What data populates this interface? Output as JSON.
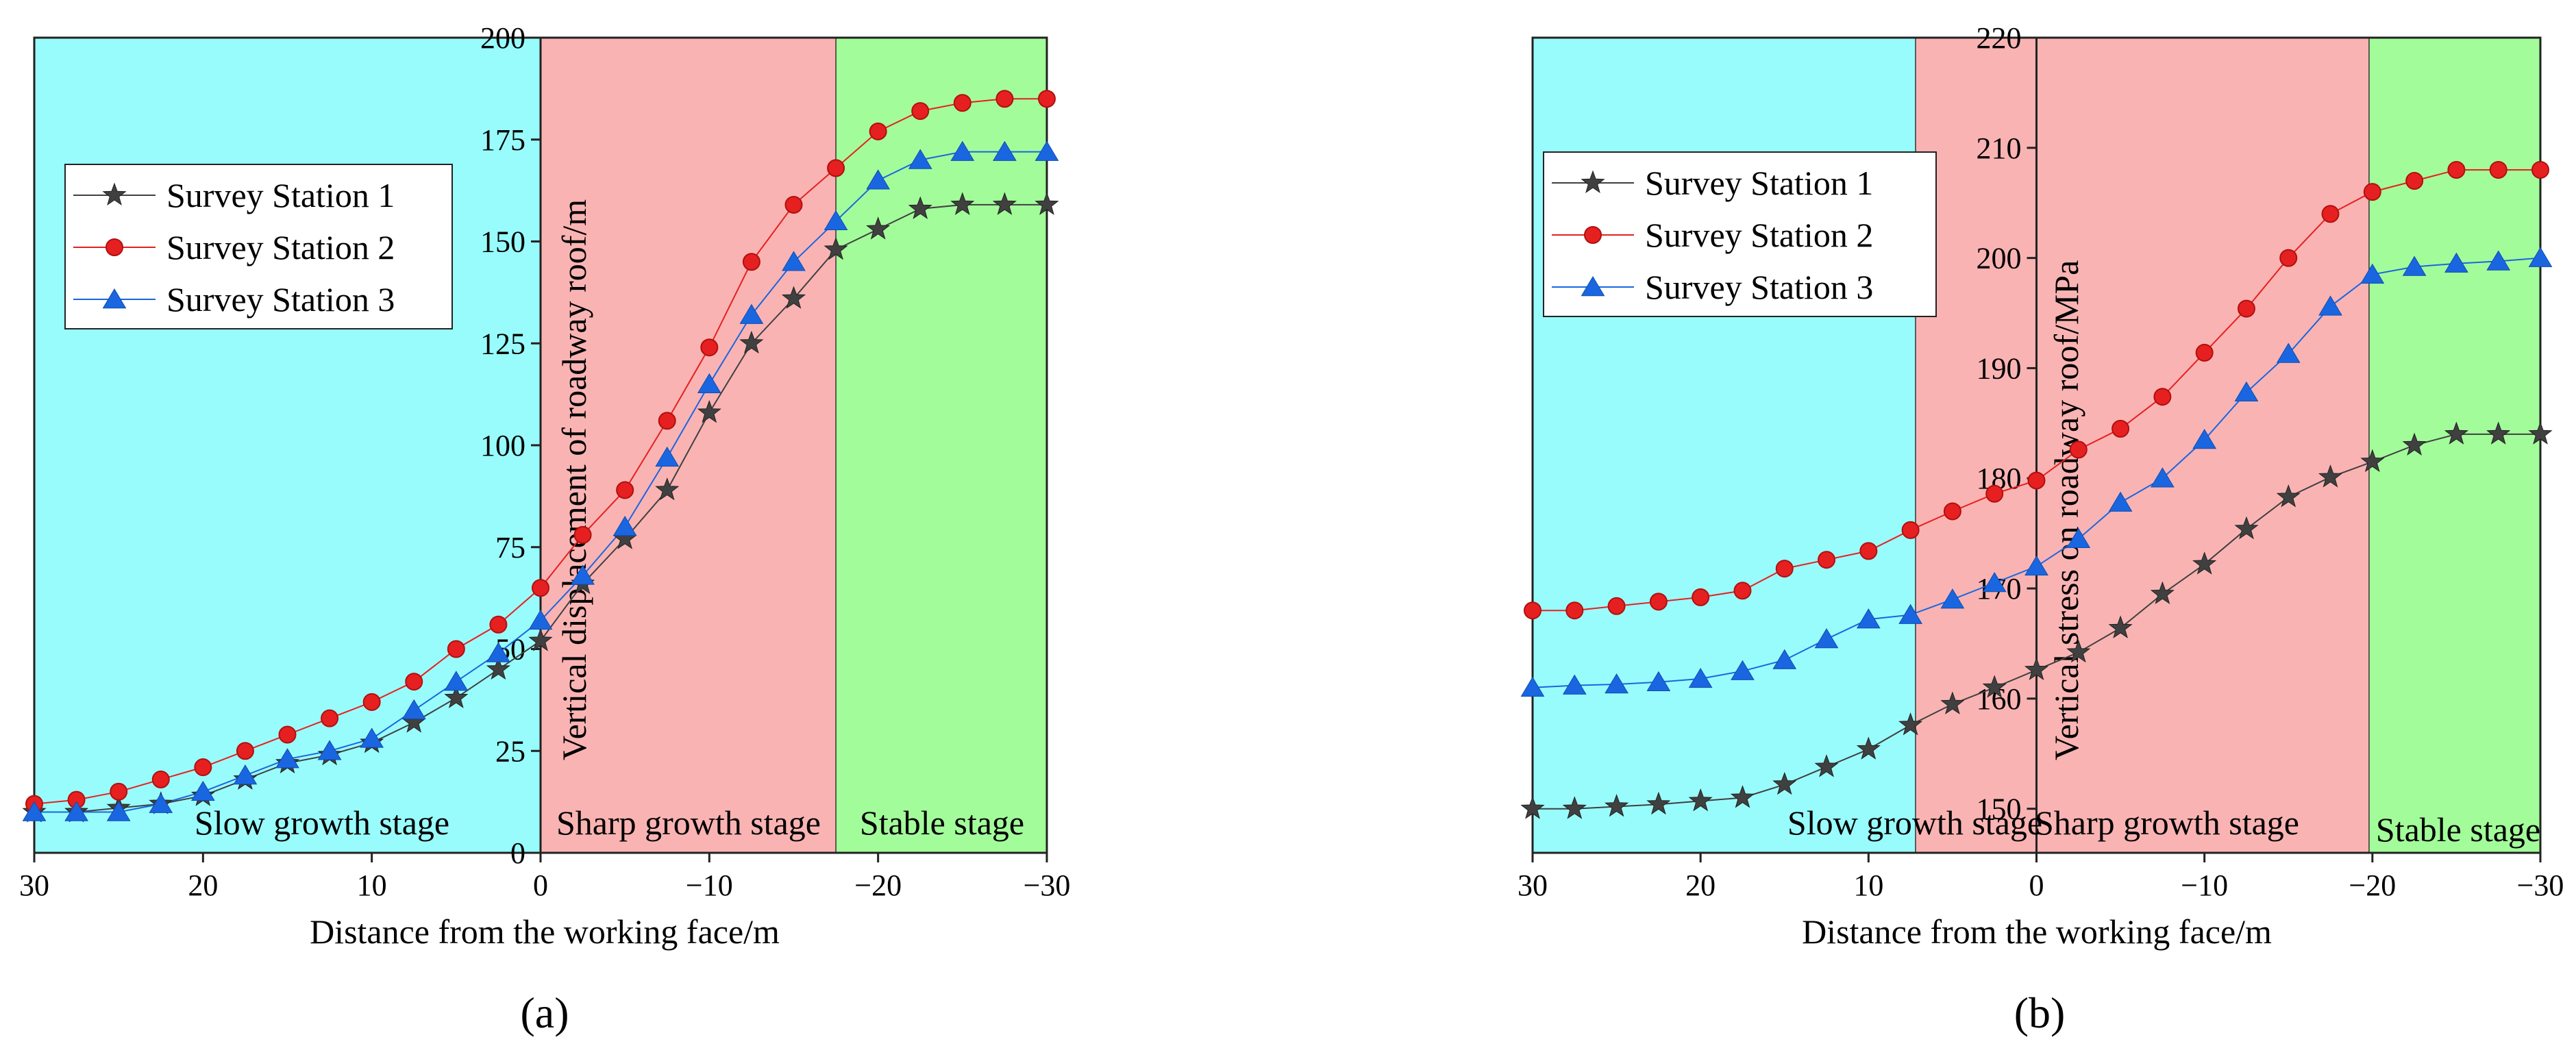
{
  "chart_data": [
    {
      "type": "line",
      "panel_label": "a",
      "xlabel": "Distance from the working face/m",
      "ylabel": "Vertical displacement of roadway roof/m",
      "xlim": [
        30,
        -30
      ],
      "ylim": [
        0,
        200
      ],
      "xticks": [
        30,
        20,
        10,
        0,
        -10,
        -20,
        -30
      ],
      "xtick_labels": [
        "30",
        "20",
        "10",
        "0",
        "−10",
        "−20",
        "−30"
      ],
      "yticks": [
        0,
        25,
        50,
        75,
        100,
        125,
        150,
        175,
        200
      ],
      "ytick_labels": [
        "0",
        "25",
        "50",
        "75",
        "100",
        "125",
        "150",
        "175",
        "200"
      ],
      "stages": [
        {
          "label": "Slow growth stage",
          "from": 30,
          "to": 0,
          "color": "#99fcfc"
        },
        {
          "label": "Sharp growth stage",
          "from": 0,
          "to": -17.5,
          "color": "#fab3b3"
        },
        {
          "label": "Stable stage",
          "from": -17.5,
          "to": -30,
          "color": "#a3fc9a"
        }
      ],
      "legend_position": "upper-left",
      "x": [
        30,
        27.5,
        25,
        22.5,
        20,
        17.5,
        15,
        12.5,
        10,
        7.5,
        5,
        2.5,
        0,
        -2.5,
        -5,
        -7.5,
        -10,
        -12.5,
        -15,
        -17.5,
        -20,
        -22.5,
        -25,
        -27.5,
        -30
      ],
      "series": [
        {
          "name": "Survey Station 1",
          "marker": "star",
          "color": "#404040",
          "values": [
            10,
            10,
            11,
            12,
            14,
            18,
            22,
            24,
            27,
            32,
            38,
            45,
            52,
            66,
            77,
            89,
            108,
            125,
            136,
            148,
            153,
            158,
            159,
            159,
            159
          ]
        },
        {
          "name": "Survey Station 2",
          "marker": "circle",
          "color": "#e62020",
          "values": [
            12,
            13,
            15,
            18,
            21,
            25,
            29,
            33,
            37,
            42,
            50,
            56,
            65,
            78,
            89,
            106,
            124,
            145,
            159,
            168,
            177,
            182,
            184,
            185,
            185
          ]
        },
        {
          "name": "Survey Station 3",
          "marker": "triangle",
          "color": "#1a66e0",
          "values": [
            10,
            10,
            10,
            12,
            15,
            19,
            23,
            25,
            28,
            35,
            42,
            49,
            57,
            68,
            80,
            97,
            115,
            132,
            145,
            155,
            165,
            170,
            172,
            172,
            172
          ]
        }
      ]
    },
    {
      "type": "line",
      "panel_label": "b",
      "xlabel": "Distance from the working face/m",
      "ylabel": "Vertical stress on roadway roof/MPa",
      "xlim": [
        30,
        -30
      ],
      "ylim": [
        146,
        220
      ],
      "xticks": [
        30,
        20,
        10,
        0,
        -10,
        -20,
        -30
      ],
      "xtick_labels": [
        "30",
        "20",
        "10",
        "0",
        "−10",
        "−20",
        "−30"
      ],
      "yticks": [
        150,
        160,
        170,
        180,
        190,
        200,
        210,
        220
      ],
      "ytick_labels": [
        "150",
        "160",
        "170",
        "180",
        "190",
        "200",
        "210",
        "220"
      ],
      "stages": [
        {
          "label": "Slow growth stage",
          "from": 30,
          "to": 7.2,
          "color": "#99fcfc"
        },
        {
          "label": "Sharp growth stage",
          "from": 7.2,
          "to": -19.8,
          "color": "#fab3b3"
        },
        {
          "label": "Stable stage",
          "from": -19.8,
          "to": -30,
          "color": "#a3fc9a"
        }
      ],
      "legend_position": "upper-left",
      "x": [
        30,
        27.5,
        25,
        22.5,
        20,
        17.5,
        15,
        12.5,
        10,
        7.5,
        5,
        2.5,
        0,
        -2.5,
        -5,
        -7.5,
        -10,
        -12.5,
        -15,
        -17.5,
        -20,
        -22.5,
        -25,
        -27.5,
        -30
      ],
      "series": [
        {
          "name": "Survey Station 1",
          "marker": "star",
          "color": "#404040",
          "values": [
            150,
            150,
            150.2,
            150.4,
            150.7,
            151,
            152.2,
            153.8,
            155.4,
            157.6,
            159.5,
            161,
            162.6,
            164.2,
            166.4,
            169.5,
            172.2,
            175.4,
            178.3,
            180.1,
            181.5,
            183,
            184,
            184,
            184
          ]
        },
        {
          "name": "Survey Station 2",
          "marker": "circle",
          "color": "#e62020",
          "values": [
            168,
            168,
            168.4,
            168.8,
            169.2,
            169.8,
            171.8,
            172.6,
            173.4,
            175.3,
            177,
            178.6,
            179.8,
            182.6,
            184.5,
            187.4,
            191.4,
            195.4,
            200,
            204,
            206,
            207,
            208,
            208,
            208
          ]
        },
        {
          "name": "Survey Station 3",
          "marker": "triangle",
          "color": "#1a66e0",
          "values": [
            161,
            161.2,
            161.3,
            161.5,
            161.8,
            162.5,
            163.5,
            165.4,
            167.2,
            167.6,
            169,
            170.5,
            172,
            174.5,
            177.8,
            180,
            183.5,
            187.8,
            191.3,
            195.6,
            198.5,
            199.2,
            199.5,
            199.7,
            200
          ]
        }
      ]
    }
  ],
  "panel_labels": [
    "(a)",
    "(b)"
  ]
}
